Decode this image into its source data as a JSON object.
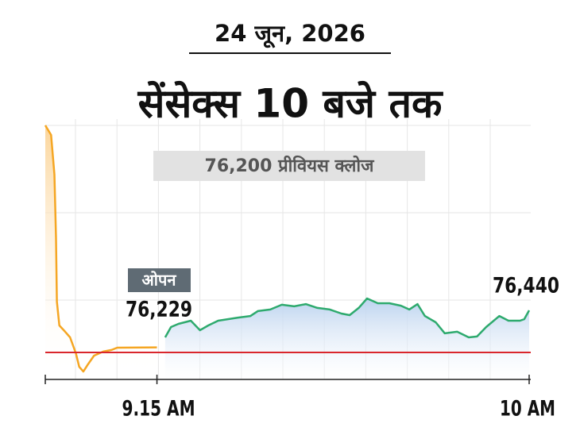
{
  "chart_data": {
    "type": "line",
    "subtitle": "24 जून, 2026",
    "title": "सेंसेक्स 10 बजे तक",
    "xlim": [
      1.5,
      60
    ],
    "ylim": [
      76046,
      77509
    ],
    "xticks": [
      {
        "value": 15,
        "label": "9.15 AM"
      },
      {
        "value": 60,
        "label": "10 AM"
      }
    ],
    "reference_line": {
      "value": 76200,
      "label": "76,200 प्रीवियस क्लोज",
      "color": "#d9262c"
    },
    "series": [
      {
        "color": "#f5a623",
        "x": [
          1.5,
          2.2,
          2.6,
          2.8,
          2.9,
          3.2,
          3.9,
          4.5,
          5.2,
          5.6,
          6.1,
          6.6,
          7.4,
          8.5,
          9.5,
          10.2,
          15
        ],
        "values": [
          77496,
          77441,
          77215,
          76852,
          76490,
          76354,
          76318,
          76286,
          76195,
          76118,
          76091,
          76128,
          76182,
          76205,
          76214,
          76227,
          76229
        ]
      },
      {
        "color": "#2eaa6e",
        "x": [
          16.0,
          16.7,
          17.6,
          19.1,
          20.2,
          21.2,
          22.4,
          24.8,
          26.3,
          27.2,
          28.7,
          30.1,
          31.6,
          33.0,
          34.4,
          35.9,
          37.3,
          38.3,
          39.4,
          40.4,
          41.7,
          43.1,
          44.5,
          45.5,
          46.5,
          47.4,
          48.7,
          49.8,
          51.3,
          52.7,
          53.7,
          54.8,
          56.4,
          57.5,
          58.9,
          59.4,
          60
        ],
        "values": [
          76286,
          76345,
          76363,
          76381,
          76327,
          76354,
          76381,
          76399,
          76408,
          76436,
          76445,
          76472,
          76463,
          76476,
          76454,
          76445,
          76422,
          76413,
          76454,
          76508,
          76481,
          76481,
          76467,
          76445,
          76476,
          76408,
          76372,
          76309,
          76318,
          76286,
          76291,
          76345,
          76408,
          76381,
          76381,
          76390,
          76440
        ]
      }
    ],
    "annotations": [
      {
        "label": "ओपन",
        "value": 76229,
        "value_label": "76,229"
      },
      {
        "value": 76440,
        "value_label": "76,440"
      }
    ]
  }
}
